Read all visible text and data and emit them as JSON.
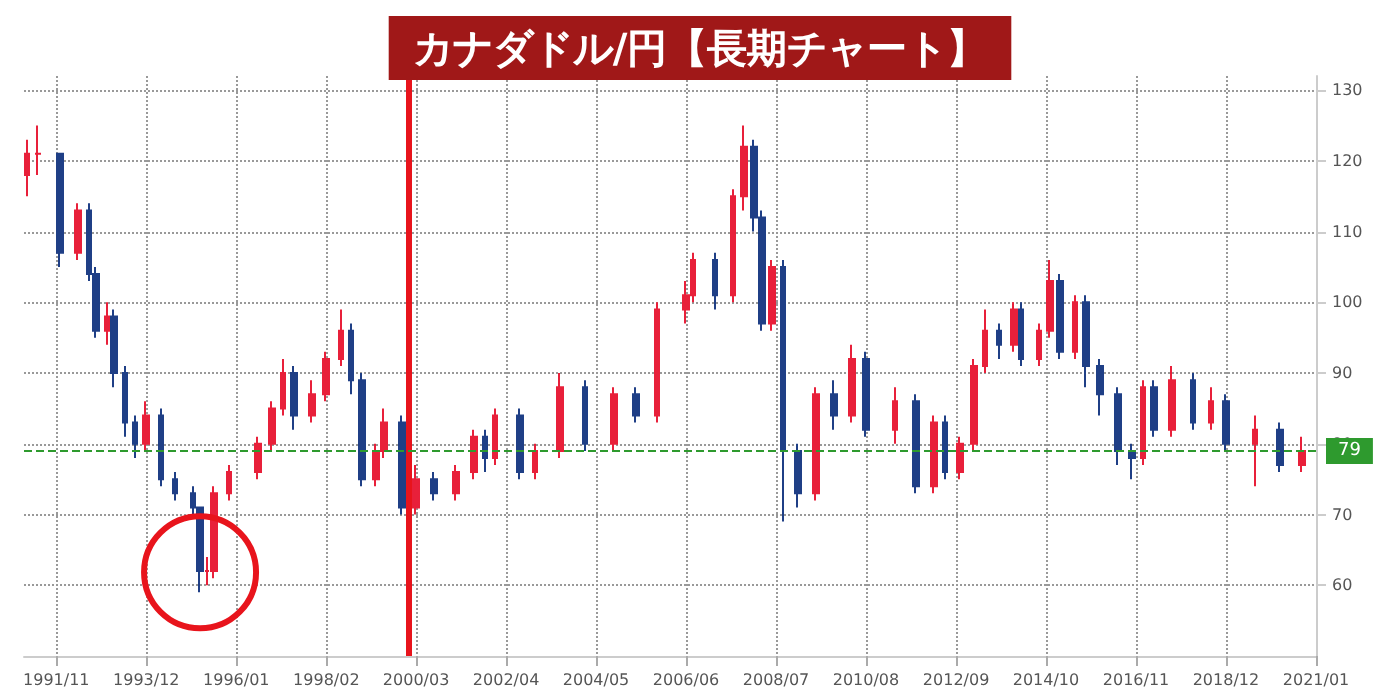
{
  "chart_data": {
    "type": "candlestick",
    "title": "カナダドル/円【長期チャート】",
    "x": [
      "1991-03",
      "1991-06",
      "1991-12",
      "1992-05",
      "1992-08",
      "1992-10",
      "1993-01",
      "1993-03",
      "1993-06",
      "1993-09",
      "1993-12",
      "1994-04",
      "1994-08",
      "1995-01",
      "1995-03",
      "1995-05",
      "1995-07",
      "1995-11",
      "1996-07",
      "1996-11",
      "1997-02",
      "1997-05",
      "1997-10",
      "1998-02",
      "1998-06",
      "1998-09",
      "1998-12",
      "1999-04",
      "1999-06",
      "1999-11",
      "2000-03",
      "2000-08",
      "2001-02",
      "2001-07",
      "2001-10",
      "2002-01",
      "2002-08",
      "2002-12",
      "2003-07",
      "2004-02",
      "2004-10",
      "2005-04",
      "2005-10",
      "2006-06",
      "2006-08",
      "2007-02",
      "2007-07",
      "2007-10",
      "2008-01",
      "2008-03",
      "2008-06",
      "2008-09",
      "2009-01",
      "2009-06",
      "2009-11",
      "2010-04",
      "2010-08",
      "2011-04",
      "2011-10",
      "2012-03",
      "2012-06",
      "2012-10",
      "2013-02",
      "2013-05",
      "2013-09",
      "2014-01",
      "2014-03",
      "2014-08",
      "2014-11",
      "2015-02",
      "2015-06",
      "2015-09",
      "2016-01",
      "2016-06",
      "2016-10",
      "2017-01",
      "2017-04",
      "2017-09",
      "2018-03",
      "2018-08",
      "2018-12",
      "2019-08",
      "2020-03",
      "2020-09"
    ],
    "ohlc": [
      [
        118,
        123,
        115,
        121
      ],
      [
        121,
        125,
        118,
        121
      ],
      [
        121,
        121,
        105,
        107
      ],
      [
        107,
        114,
        106,
        113
      ],
      [
        113,
        114,
        103,
        104
      ],
      [
        104,
        105,
        95,
        96
      ],
      [
        96,
        100,
        94,
        98
      ],
      [
        98,
        99,
        88,
        90
      ],
      [
        90,
        91,
        81,
        83
      ],
      [
        83,
        84,
        78,
        80
      ],
      [
        80,
        86,
        79,
        84
      ],
      [
        84,
        85,
        74,
        75
      ],
      [
        75,
        76,
        72,
        73
      ],
      [
        73,
        74,
        70,
        71
      ],
      [
        71,
        71,
        59,
        62
      ],
      [
        62,
        64,
        60,
        62
      ],
      [
        62,
        74,
        61,
        73
      ],
      [
        73,
        77,
        72,
        76
      ],
      [
        76,
        81,
        75,
        80
      ],
      [
        80,
        86,
        79,
        85
      ],
      [
        85,
        92,
        84,
        90
      ],
      [
        90,
        91,
        82,
        84
      ],
      [
        84,
        89,
        83,
        87
      ],
      [
        87,
        93,
        86,
        92
      ],
      [
        92,
        99,
        91,
        96
      ],
      [
        96,
        97,
        87,
        89
      ],
      [
        89,
        90,
        74,
        75
      ],
      [
        75,
        80,
        74,
        79
      ],
      [
        79,
        85,
        78,
        83
      ],
      [
        83,
        84,
        70,
        71
      ],
      [
        71,
        77,
        70,
        75
      ],
      [
        75,
        76,
        72,
        73
      ],
      [
        73,
        77,
        72,
        76
      ],
      [
        76,
        82,
        75,
        81
      ],
      [
        81,
        82,
        76,
        78
      ],
      [
        78,
        85,
        77,
        84
      ],
      [
        84,
        85,
        75,
        76
      ],
      [
        76,
        80,
        75,
        79
      ],
      [
        79,
        90,
        78,
        88
      ],
      [
        88,
        89,
        79,
        80
      ],
      [
        80,
        88,
        79,
        87
      ],
      [
        87,
        88,
        83,
        84
      ],
      [
        84,
        100,
        83,
        99
      ],
      [
        99,
        103,
        97,
        101
      ],
      [
        101,
        107,
        100,
        106
      ],
      [
        106,
        107,
        99,
        101
      ],
      [
        101,
        116,
        100,
        115
      ],
      [
        115,
        125,
        113,
        122
      ],
      [
        122,
        123,
        110,
        112
      ],
      [
        112,
        113,
        96,
        97
      ],
      [
        97,
        106,
        96,
        105
      ],
      [
        105,
        106,
        69,
        79
      ],
      [
        79,
        80,
        71,
        73
      ],
      [
        73,
        88,
        72,
        87
      ],
      [
        87,
        89,
        82,
        84
      ],
      [
        84,
        94,
        83,
        92
      ],
      [
        92,
        93,
        81,
        82
      ],
      [
        82,
        88,
        80,
        86
      ],
      [
        86,
        87,
        73,
        74
      ],
      [
        74,
        84,
        73,
        83
      ],
      [
        83,
        84,
        75,
        76
      ],
      [
        76,
        81,
        75,
        80
      ],
      [
        80,
        92,
        79,
        91
      ],
      [
        91,
        99,
        90,
        96
      ],
      [
        96,
        97,
        92,
        94
      ],
      [
        94,
        100,
        93,
        99
      ],
      [
        99,
        100,
        91,
        92
      ],
      [
        92,
        97,
        91,
        96
      ],
      [
        96,
        106,
        95,
        103
      ],
      [
        103,
        104,
        92,
        93
      ],
      [
        93,
        101,
        92,
        100
      ],
      [
        100,
        101,
        88,
        91
      ],
      [
        91,
        92,
        84,
        87
      ],
      [
        87,
        88,
        77,
        79
      ],
      [
        79,
        80,
        75,
        78
      ],
      [
        78,
        89,
        77,
        88
      ],
      [
        88,
        89,
        81,
        82
      ],
      [
        82,
        91,
        81,
        89
      ],
      [
        89,
        90,
        82,
        83
      ],
      [
        83,
        88,
        82,
        86
      ],
      [
        86,
        87,
        79,
        80
      ],
      [
        80,
        84,
        74,
        82
      ],
      [
        82,
        83,
        76,
        77
      ],
      [
        77,
        81,
        76,
        79
      ]
    ],
    "xlim": [
      "1991-02",
      "2021-01"
    ],
    "xticks": [
      {
        "value": "1991-11",
        "label": "1991/11"
      },
      {
        "value": "1993-12",
        "label": "1993/12"
      },
      {
        "value": "1996-01",
        "label": "1996/01"
      },
      {
        "value": "1998-02",
        "label": "1998/02"
      },
      {
        "value": "2000-03",
        "label": "2000/03"
      },
      {
        "value": "2002-04",
        "label": "2002/04"
      },
      {
        "value": "2004-05",
        "label": "2004/05"
      },
      {
        "value": "2006-06",
        "label": "2006/06"
      },
      {
        "value": "2008-07",
        "label": "2008/07"
      },
      {
        "value": "2010-08",
        "label": "2010/08"
      },
      {
        "value": "2012-09",
        "label": "2012/09"
      },
      {
        "value": "2014-10",
        "label": "2014/10"
      },
      {
        "value": "2016-11",
        "label": "2016/11"
      },
      {
        "value": "2018-12",
        "label": "2018/12"
      },
      {
        "value": "2021-01",
        "label": "2021/01"
      }
    ],
    "ylim": [
      50,
      132
    ],
    "yticks": [
      60,
      70,
      80,
      90,
      100,
      110,
      120,
      130
    ],
    "grid": true,
    "ref_lines": [
      {
        "axis": "x",
        "value": "2000-01",
        "label": null,
        "color": "#e8141c",
        "line_style": "solid"
      },
      {
        "axis": "y",
        "value": 79,
        "label": "79",
        "color": "#2e9a2e",
        "line_style": "dashed"
      }
    ]
  }
}
